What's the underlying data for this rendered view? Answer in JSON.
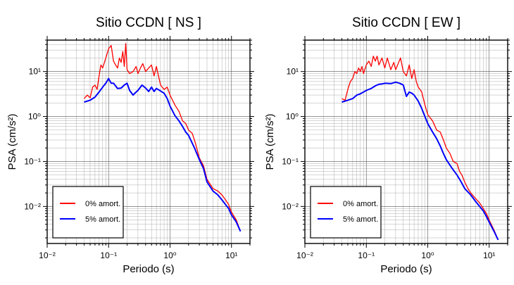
{
  "chart_data": [
    {
      "type": "line",
      "title": "Sitio CCDN [ NS ]",
      "xlabel": "Periodo (s)",
      "ylabel": "PSA (cm/s²)",
      "xscale": "log",
      "yscale": "log",
      "xlim": [
        0.01,
        20
      ],
      "ylim": [
        0.0015,
        50
      ],
      "grid": true,
      "legend_position": "bottom-left",
      "xticks": [
        {
          "value": 0.01,
          "label": "10⁻²"
        },
        {
          "value": 0.1,
          "label": "10⁻¹"
        },
        {
          "value": 1,
          "label": "10⁰"
        },
        {
          "value": 10,
          "label": "10¹"
        }
      ],
      "yticks": [
        {
          "value": 0.01,
          "label": "10⁻²"
        },
        {
          "value": 0.1,
          "label": "10⁻¹"
        },
        {
          "value": 1,
          "label": "10⁰"
        },
        {
          "value": 10,
          "label": "10¹"
        }
      ],
      "series": [
        {
          "name": "0% amort.",
          "color": "#ff0000",
          "x": [
            0.04,
            0.045,
            0.05,
            0.055,
            0.06,
            0.065,
            0.07,
            0.075,
            0.08,
            0.09,
            0.1,
            0.11,
            0.12,
            0.13,
            0.14,
            0.15,
            0.16,
            0.17,
            0.18,
            0.19,
            0.2,
            0.22,
            0.25,
            0.28,
            0.3,
            0.33,
            0.36,
            0.4,
            0.45,
            0.5,
            0.55,
            0.6,
            0.7,
            0.8,
            0.9,
            1.0,
            1.2,
            1.4,
            1.6,
            1.8,
            2.0,
            2.3,
            2.6,
            3.0,
            3.5,
            4.0,
            5.0,
            6.0,
            7.0,
            8.0,
            9.0,
            10.0,
            12.0,
            14.0
          ],
          "y": [
            2.5,
            3,
            2.6,
            4.5,
            5,
            4,
            8,
            14,
            12,
            20,
            32,
            38,
            17,
            14,
            12,
            20,
            16,
            28,
            13,
            42,
            11,
            9,
            10,
            13,
            9,
            12,
            15,
            10,
            12,
            14,
            8,
            13,
            5,
            4,
            4.5,
            3,
            1.8,
            1.3,
            0.8,
            0.7,
            0.5,
            0.42,
            0.25,
            0.12,
            0.08,
            0.04,
            0.025,
            0.022,
            0.018,
            0.014,
            0.011,
            0.0075,
            0.005,
            0.0028
          ]
        },
        {
          "name": "5% amort.",
          "color": "#0000ff",
          "x": [
            0.04,
            0.05,
            0.06,
            0.07,
            0.08,
            0.09,
            0.1,
            0.11,
            0.12,
            0.14,
            0.16,
            0.18,
            0.2,
            0.22,
            0.25,
            0.28,
            0.3,
            0.35,
            0.4,
            0.45,
            0.5,
            0.55,
            0.6,
            0.7,
            0.8,
            0.9,
            1.0,
            1.2,
            1.4,
            1.6,
            1.8,
            2.0,
            2.5,
            3.0,
            3.5,
            4.0,
            5.0,
            6.0,
            7.0,
            8.0,
            9.0,
            10.0,
            12.0,
            14.0
          ],
          "y": [
            2.1,
            2.3,
            2.7,
            3.5,
            4.5,
            5.5,
            7,
            5.5,
            5.5,
            4.2,
            4.3,
            5,
            5.5,
            3.8,
            3,
            3.5,
            3.8,
            5.0,
            4.3,
            3.6,
            4.5,
            3.6,
            4.2,
            3.7,
            3.3,
            2.5,
            1.7,
            1.05,
            0.8,
            0.6,
            0.45,
            0.38,
            0.2,
            0.11,
            0.07,
            0.035,
            0.022,
            0.018,
            0.014,
            0.011,
            0.009,
            0.0065,
            0.0045,
            0.0028
          ]
        }
      ]
    },
    {
      "type": "line",
      "title": "Sitio CCDN [ EW ]",
      "xlabel": "Periodo (s)",
      "ylabel": "PSA (cm/s²)",
      "xscale": "log",
      "yscale": "log",
      "xlim": [
        0.01,
        20
      ],
      "ylim": [
        0.0015,
        50
      ],
      "grid": true,
      "legend_position": "bottom-left",
      "xticks": [
        {
          "value": 0.01,
          "label": "10⁻²"
        },
        {
          "value": 0.1,
          "label": "10⁻¹"
        },
        {
          "value": 1,
          "label": "10⁰"
        },
        {
          "value": 10,
          "label": "10¹"
        }
      ],
      "yticks": [
        {
          "value": 0.01,
          "label": "10⁻²"
        },
        {
          "value": 0.1,
          "label": "10⁻¹"
        },
        {
          "value": 1,
          "label": "10⁰"
        },
        {
          "value": 10,
          "label": "10¹"
        }
      ],
      "series": [
        {
          "name": "0% amort.",
          "color": "#ff0000",
          "x": [
            0.04,
            0.045,
            0.05,
            0.055,
            0.06,
            0.065,
            0.07,
            0.075,
            0.08,
            0.085,
            0.09,
            0.1,
            0.11,
            0.12,
            0.13,
            0.14,
            0.15,
            0.16,
            0.18,
            0.2,
            0.22,
            0.25,
            0.28,
            0.3,
            0.33,
            0.36,
            0.4,
            0.45,
            0.5,
            0.55,
            0.6,
            0.65,
            0.7,
            0.8,
            0.9,
            1.0,
            1.2,
            1.4,
            1.6,
            1.8,
            2.0,
            2.3,
            2.6,
            3.0,
            3.3,
            3.6,
            4.0,
            4.5,
            5.0,
            6.0,
            7.0,
            8.0,
            9.0,
            10.0,
            12.0,
            14.0
          ],
          "y": [
            2.5,
            2.3,
            4,
            6,
            7,
            10,
            9,
            12,
            10,
            13,
            9,
            14,
            17,
            13,
            22,
            17,
            22,
            14,
            20,
            12,
            20,
            11,
            16,
            11,
            15,
            20,
            10,
            8,
            14,
            7,
            11,
            6,
            4.5,
            3.5,
            1.8,
            1.1,
            0.8,
            0.5,
            0.45,
            0.3,
            0.2,
            0.15,
            0.1,
            0.09,
            0.06,
            0.05,
            0.035,
            0.025,
            0.02,
            0.015,
            0.012,
            0.009,
            0.007,
            0.005,
            0.003,
            0.0018
          ]
        },
        {
          "name": "5% amort.",
          "color": "#0000ff",
          "x": [
            0.04,
            0.05,
            0.06,
            0.07,
            0.08,
            0.09,
            0.1,
            0.12,
            0.14,
            0.16,
            0.18,
            0.2,
            0.25,
            0.3,
            0.35,
            0.4,
            0.45,
            0.5,
            0.55,
            0.6,
            0.7,
            0.8,
            0.9,
            1.0,
            1.2,
            1.4,
            1.6,
            1.8,
            2.0,
            2.5,
            3.0,
            3.5,
            4.0,
            5.0,
            6.0,
            7.0,
            8.0,
            9.0,
            10.0,
            12.0,
            14.0
          ],
          "y": [
            2.1,
            2.3,
            2.5,
            3,
            3.2,
            3.5,
            3.8,
            4.2,
            4.8,
            5.2,
            5.3,
            5.5,
            5.4,
            5.8,
            5.5,
            5.0,
            2.8,
            3.5,
            3.3,
            3.0,
            2.2,
            1.5,
            1.0,
            0.7,
            0.45,
            0.32,
            0.22,
            0.15,
            0.11,
            0.07,
            0.05,
            0.035,
            0.025,
            0.018,
            0.013,
            0.01,
            0.008,
            0.006,
            0.0045,
            0.0028,
            0.0018
          ]
        }
      ]
    }
  ]
}
